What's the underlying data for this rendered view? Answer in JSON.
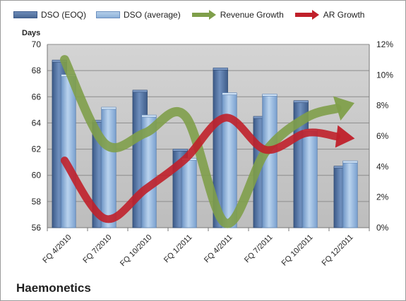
{
  "chart_data": {
    "type": "bar",
    "categories": [
      "FQ 4/2010",
      "FQ 7/2010",
      "FQ 10/2010",
      "FQ 1/2011",
      "FQ 4/2011",
      "FQ 7/2011",
      "FQ 10/2011",
      "FQ 12/2011"
    ],
    "series": [
      {
        "name": "DSO (EOQ)",
        "type": "bar",
        "axis": "left",
        "values": [
          68.7,
          64.1,
          66.4,
          61.9,
          68.1,
          64.4,
          65.6,
          60.6
        ]
      },
      {
        "name": "DSO (average)",
        "type": "bar",
        "axis": "left",
        "values": [
          67.6,
          65.1,
          64.5,
          61.2,
          66.2,
          66.1,
          63.4,
          61.0
        ]
      },
      {
        "name": "Revenue Growth",
        "type": "line",
        "axis": "right",
        "values": [
          0.11,
          0.055,
          0.062,
          0.073,
          0.003,
          0.05,
          0.072,
          0.08
        ]
      },
      {
        "name": "AR Growth",
        "type": "line",
        "axis": "right",
        "values": [
          0.044,
          0.006,
          0.025,
          0.045,
          0.072,
          0.051,
          0.062,
          0.059
        ]
      }
    ],
    "title": "",
    "ylabel": "Days",
    "ylim": [
      56,
      70
    ],
    "yticks": [
      "56",
      "58",
      "60",
      "62",
      "64",
      "66",
      "68",
      "70"
    ],
    "y2lim": [
      0,
      0.12
    ],
    "y2ticks": [
      "0%",
      "2%",
      "4%",
      "6%",
      "8%",
      "10%",
      "12%"
    ],
    "grid": true,
    "legend_placement": "top",
    "colors": {
      "dso_eoq": "#4a6894",
      "dso_avg": "#8cb0d8",
      "revenue": "#7f9f4a",
      "ar": "#c0202a",
      "plot_bg": "#c8c8c8"
    }
  },
  "company": "Haemonetics"
}
